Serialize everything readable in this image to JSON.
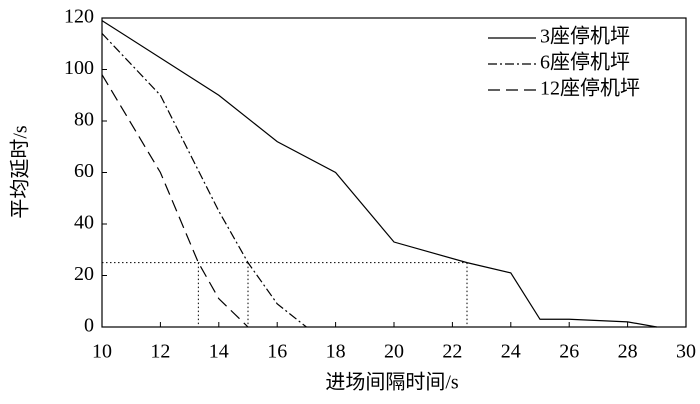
{
  "chart_data": {
    "type": "line",
    "x_label": "进场间隔时间/s",
    "y_label": "平均延时/s",
    "xlim": [
      10,
      30
    ],
    "xticks": [
      10,
      12,
      14,
      16,
      18,
      20,
      22,
      24,
      26,
      28,
      30
    ],
    "ylim": [
      0,
      120
    ],
    "yticks": [
      0,
      20,
      40,
      60,
      80,
      100,
      120
    ],
    "legend": "upper-right",
    "reference": {
      "y": 25,
      "x": [
        13.3,
        15,
        22.5
      ],
      "style": "dotted",
      "color": "#000000"
    },
    "series": [
      {
        "name": "3座停机坪",
        "color": "#000000",
        "style": "solid",
        "x": [
          10,
          14,
          16,
          18,
          20,
          22.5,
          24,
          25,
          26,
          28,
          29
        ],
        "values": [
          119,
          90,
          72,
          60,
          33,
          25,
          21,
          3,
          3,
          2,
          0
        ]
      },
      {
        "name": "6座停机坪",
        "color": "#000000",
        "style": "dashdot",
        "x": [
          10,
          12,
          14,
          15,
          16,
          17
        ],
        "values": [
          114,
          90,
          45,
          25,
          9,
          0
        ]
      },
      {
        "name": "12座停机坪",
        "color": "#000000",
        "style": "dashed",
        "x": [
          10,
          12,
          13.3,
          14,
          15
        ],
        "values": [
          98,
          60,
          25,
          11,
          0
        ]
      }
    ]
  }
}
